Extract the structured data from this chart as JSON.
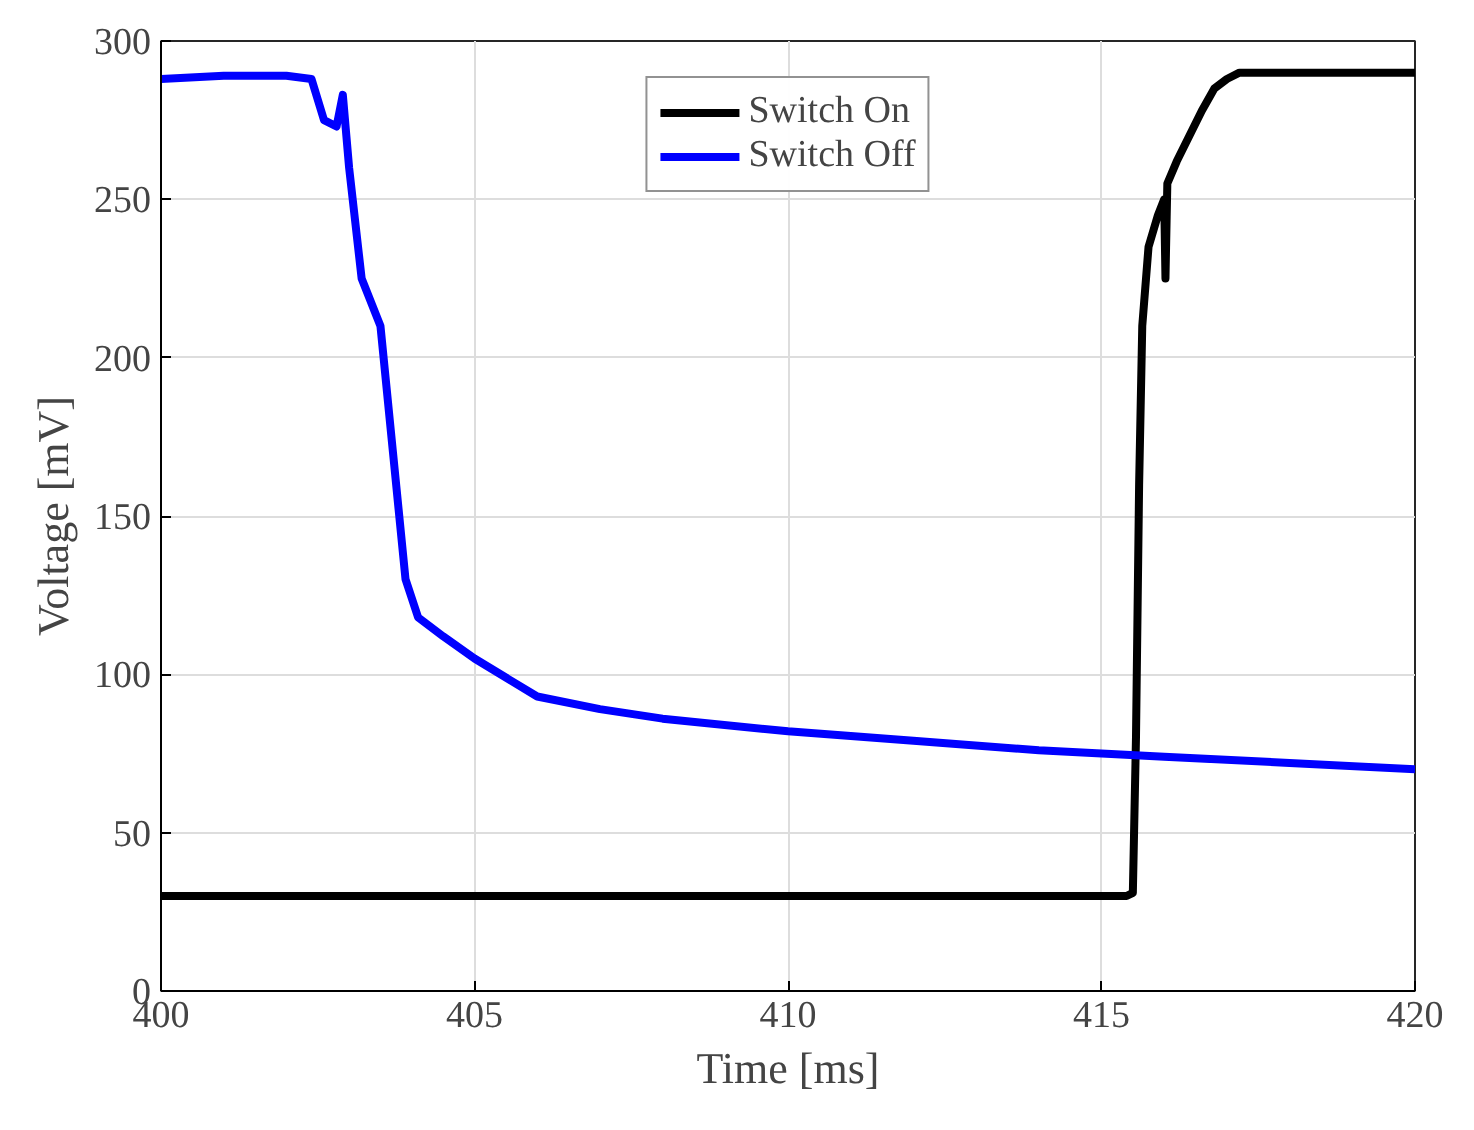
{
  "chart_data": {
    "type": "line",
    "xlabel": "Time [ms]",
    "ylabel": "Voltage [mV]",
    "xlim": [
      400,
      420
    ],
    "xticks": [
      400,
      405,
      410,
      415,
      420
    ],
    "ylim": [
      0,
      300
    ],
    "yticks": [
      0,
      50,
      100,
      150,
      200,
      250,
      300
    ],
    "grid": true,
    "legend": "top",
    "line_style": "solid",
    "marker": "none",
    "series": [
      {
        "name": "Switch On",
        "color": "#000000",
        "x": [
          400,
          402,
          404,
          406,
          408,
          410,
          412,
          414,
          415.4,
          415.5,
          415.55,
          415.6,
          415.65,
          415.75,
          415.9,
          416,
          416.02,
          416.05,
          416.2,
          416.4,
          416.6,
          416.8,
          417,
          417.2,
          418,
          419,
          420
        ],
        "values": [
          30,
          30,
          30,
          30,
          30,
          30,
          30,
          30,
          30,
          31,
          80,
          160,
          210,
          235,
          245,
          250,
          225,
          255,
          262,
          270,
          278,
          285,
          288,
          290,
          290,
          290,
          290
        ]
      },
      {
        "name": "Switch Off",
        "color": "#0000ff",
        "x": [
          400,
          401,
          402,
          402.4,
          402.6,
          402.8,
          402.9,
          403,
          403.2,
          403.5,
          403.7,
          403.9,
          404.1,
          404.5,
          405,
          406,
          407,
          408,
          410,
          412,
          414,
          416,
          418,
          420
        ],
        "values": [
          288,
          289,
          289,
          288,
          275,
          273,
          283,
          260,
          225,
          210,
          170,
          130,
          118,
          112,
          105,
          93,
          89,
          86,
          82,
          79,
          76,
          74,
          72,
          70
        ]
      }
    ]
  }
}
